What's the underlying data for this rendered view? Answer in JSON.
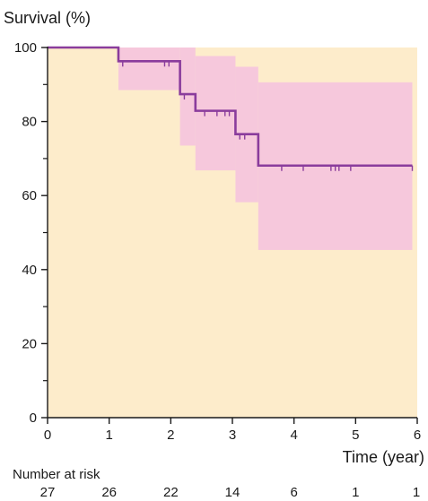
{
  "chart_data": {
    "type": "line",
    "subtype": "kaplan-meier",
    "title": "",
    "ylabel": "Survival (%)",
    "xlabel": "Time (year)",
    "xlim": [
      0,
      6
    ],
    "ylim": [
      0,
      100
    ],
    "x_ticks": [
      0,
      1,
      2,
      3,
      4,
      5,
      6
    ],
    "y_ticks": [
      0,
      20,
      40,
      60,
      80,
      100
    ],
    "y_minor_ticks": [
      10,
      30,
      50,
      70,
      90
    ],
    "grid": false,
    "colors": {
      "plot_background": "#fdeccb",
      "confidence_band": "#f6c8dc",
      "curve": "#8a3c9c",
      "axis": "#1a1a1a"
    },
    "series": [
      {
        "steps": [
          {
            "x": 0,
            "y": 100
          },
          {
            "x": 1.15,
            "y": 96.3
          },
          {
            "x": 2.15,
            "y": 87.4
          },
          {
            "x": 2.4,
            "y": 82.9
          },
          {
            "x": 3.05,
            "y": 76.6
          },
          {
            "x": 3.42,
            "y": 68.1
          },
          {
            "x": 5.92,
            "y": 68.1
          }
        ],
        "censor_x": [
          1.22,
          1.9,
          1.97,
          2.22,
          2.55,
          2.75,
          2.88,
          2.95,
          3.12,
          3.2,
          3.8,
          4.15,
          4.6,
          4.67,
          4.73,
          4.92,
          5.92
        ]
      }
    ],
    "confidence_band": [
      {
        "x0": 0,
        "x1": 1.15,
        "lower": 100,
        "upper": 100
      },
      {
        "x0": 1.15,
        "x1": 2.15,
        "lower": 88.5,
        "upper": 100
      },
      {
        "x0": 2.15,
        "x1": 2.4,
        "lower": 73.5,
        "upper": 100
      },
      {
        "x0": 2.4,
        "x1": 3.05,
        "lower": 66.8,
        "upper": 97.7
      },
      {
        "x0": 3.05,
        "x1": 3.42,
        "lower": 58.2,
        "upper": 94.8
      },
      {
        "x0": 3.42,
        "x1": 5.92,
        "lower": 45.3,
        "upper": 90.6
      }
    ],
    "number_at_risk": {
      "label": "Number at risk",
      "values": [
        {
          "x": 0,
          "n": 27
        },
        {
          "x": 1,
          "n": 26
        },
        {
          "x": 2,
          "n": 22
        },
        {
          "x": 3,
          "n": 14
        },
        {
          "x": 4,
          "n": 6
        },
        {
          "x": 5,
          "n": 1
        },
        {
          "x": 6,
          "n": 1
        }
      ]
    }
  }
}
